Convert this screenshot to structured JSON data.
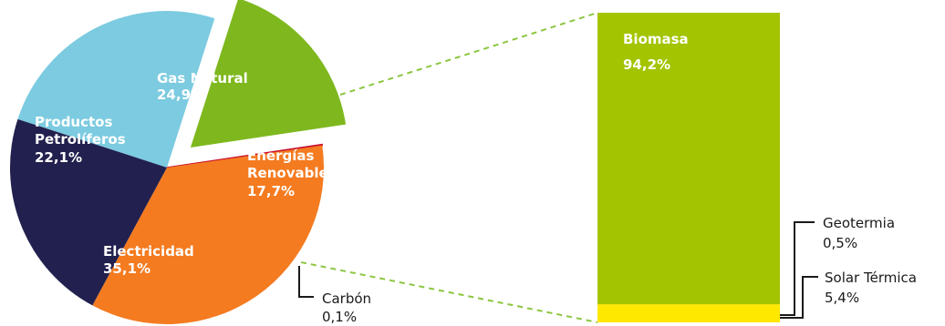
{
  "chart_data": [
    {
      "type": "pie",
      "exploded": "Energías Renovables",
      "slices": [
        {
          "label_lines": [
            "Gas Natural"
          ],
          "value": 24.9,
          "value_label": "24,9%",
          "color": "#7ccbe0"
        },
        {
          "label_lines": [
            "Energías",
            "Renovables"
          ],
          "value": 17.7,
          "value_label": "17,7%",
          "color": "#7eb81e"
        },
        {
          "label_lines": [
            "Carbón"
          ],
          "value": 0.1,
          "value_label": "0,1%",
          "color": "#c8102e"
        },
        {
          "label_lines": [
            "Electricidad"
          ],
          "value": 35.1,
          "value_label": "35,1%",
          "color": "#f47b20"
        },
        {
          "label_lines": [
            "Productos",
            "Petrolíferos"
          ],
          "value": 22.1,
          "value_label": "22,1%",
          "color": "#22204e"
        }
      ]
    },
    {
      "type": "bar",
      "stacked": true,
      "orientation": "vertical",
      "segments": [
        {
          "label": "Biomasa",
          "value": 94.2,
          "value_label": "94,2%",
          "color": "#a3c400"
        },
        {
          "label": "Geotermia",
          "value": 0.5,
          "value_label": "0,5%",
          "color": "#f5e400"
        },
        {
          "label": "Solar Térmica",
          "value": 5.4,
          "value_label": "5,4%",
          "color": "#ffe800"
        }
      ]
    }
  ],
  "colors": {
    "connector": "#8cc63f",
    "callout_line": "#1a1a1a"
  }
}
